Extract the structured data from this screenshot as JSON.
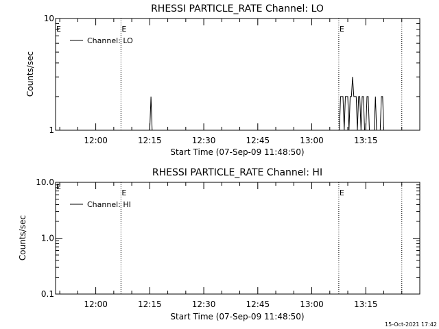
{
  "chart_data": [
    {
      "type": "line",
      "title": "RHESSI PARTICLE_RATE Channel: LO",
      "xlabel": "Start Time (07-Sep-09 11:48:50)",
      "ylabel": "Counts/sec",
      "yscale": "log",
      "ylim": [
        1,
        10
      ],
      "ytick_labels": [
        "1",
        "10"
      ],
      "xlim": [
        "11:48:50",
        "13:30:00"
      ],
      "xtick_labels": [
        "12:00",
        "12:15",
        "12:30",
        "12:45",
        "13:00",
        "13:15"
      ],
      "legend": {
        "placement": "top-left",
        "entries": [
          "Channel: LO"
        ]
      },
      "event_markers": [
        {
          "time": "12:07:00",
          "label": "E"
        },
        {
          "time": "13:07:30",
          "label": "E"
        },
        {
          "time": "13:25:00",
          "label": ""
        }
      ],
      "edge_label": "E",
      "series": [
        {
          "name": "Channel: LO",
          "x": [
            "12:14:30",
            "12:15:00",
            "12:15:20",
            "12:15:40",
            "12:16:00",
            "13:07:40",
            "13:08:00",
            "13:08:40",
            "13:09:00",
            "13:09:20",
            "13:10:00",
            "13:10:20",
            "13:10:40",
            "13:11:00",
            "13:11:20",
            "13:11:40",
            "13:12:20",
            "13:12:40",
            "13:13:00",
            "13:13:20",
            "13:13:40",
            "13:14:00",
            "13:14:20",
            "13:14:40",
            "13:15:00",
            "13:15:20",
            "13:15:40",
            "13:16:00",
            "13:16:20",
            "13:17:20",
            "13:17:40",
            "13:18:00",
            "13:18:20",
            "13:19:00",
            "13:19:20",
            "13:19:40",
            "13:20:00",
            "13:20:20"
          ],
          "values": [
            1,
            1,
            2,
            1,
            1,
            1,
            2,
            2,
            1,
            2,
            2,
            1,
            2,
            2,
            3,
            2,
            2,
            1,
            2,
            2,
            1,
            2,
            2,
            1,
            1,
            2,
            2,
            1,
            1,
            1,
            2,
            1,
            1,
            1,
            2,
            2,
            1,
            1
          ]
        }
      ]
    },
    {
      "type": "line",
      "title": "RHESSI PARTICLE_RATE Channel: HI",
      "xlabel": "Start Time (07-Sep-09 11:48:50)",
      "ylabel": "Counts/sec",
      "yscale": "log",
      "ylim": [
        0.1,
        10
      ],
      "ytick_labels": [
        "0.1",
        "1.0",
        "10.0"
      ],
      "xlim": [
        "11:48:50",
        "13:30:00"
      ],
      "xtick_labels": [
        "12:00",
        "12:15",
        "12:30",
        "12:45",
        "13:00",
        "13:15"
      ],
      "legend": {
        "placement": "top-left",
        "entries": [
          "Channel: HI"
        ]
      },
      "event_markers": [
        {
          "time": "12:07:00",
          "label": "E"
        },
        {
          "time": "13:07:30",
          "label": "E"
        },
        {
          "time": "13:25:00",
          "label": ""
        }
      ],
      "edge_label": "E",
      "series": [
        {
          "name": "Channel: HI",
          "x": [],
          "values": []
        }
      ]
    }
  ],
  "footer": {
    "timestamp": "15-Oct-2021 17:42"
  }
}
